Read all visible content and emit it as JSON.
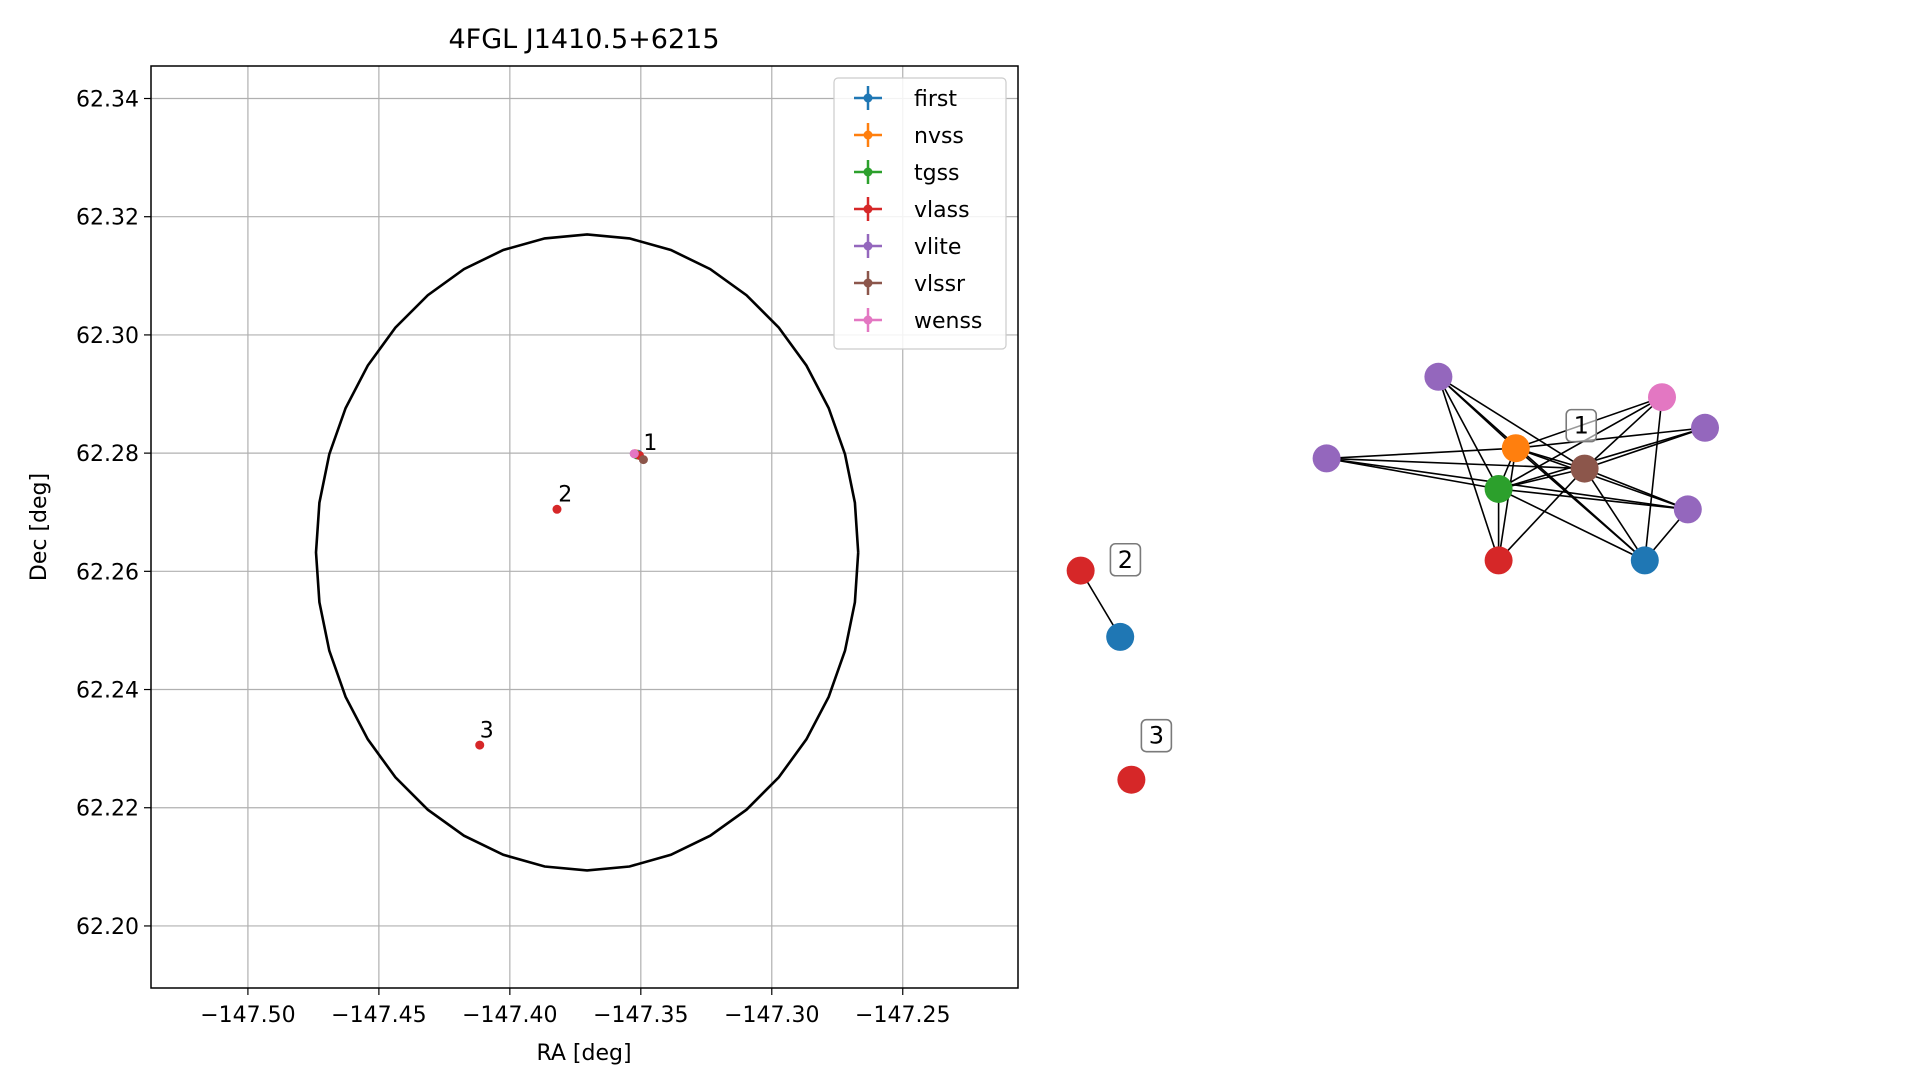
{
  "chart_data": [
    {
      "type": "scatter",
      "title": "4FGL J1410.5+6215",
      "xlabel": "RA [deg]",
      "ylabel": "Dec [deg]",
      "xlim": [
        -147.537,
        -147.206
      ],
      "ylim": [
        62.1895,
        62.3455
      ],
      "xticks": [
        -147.5,
        -147.45,
        -147.4,
        -147.35,
        -147.3,
        -147.25
      ],
      "xtick_labels": [
        "−147.50",
        "−147.45",
        "−147.40",
        "−147.35",
        "−147.30",
        "−147.25"
      ],
      "yticks": [
        62.2,
        62.22,
        62.24,
        62.26,
        62.28,
        62.3,
        62.32,
        62.34
      ],
      "ytick_labels": [
        "62.20",
        "62.22",
        "62.24",
        "62.26",
        "62.28",
        "62.30",
        "62.32",
        "62.34"
      ],
      "grid": true,
      "legend_position": "upper right",
      "ellipse": {
        "center": [
          -147.3705,
          62.2632
        ],
        "half_width": 0.1035,
        "half_height": 0.0538
      },
      "series": [
        {
          "name": "first",
          "color": "#1f77b4",
          "points": [
            [
              -147.351,
              62.2798
            ]
          ]
        },
        {
          "name": "nvss",
          "color": "#ff7f0e",
          "points": [
            [
              -147.352,
              62.2799
            ]
          ]
        },
        {
          "name": "tgss",
          "color": "#2ca02c",
          "points": [
            [
              -147.3515,
              62.2797
            ]
          ]
        },
        {
          "name": "vlass",
          "color": "#d62728",
          "points": [
            [
              -147.3505,
              62.2796
            ],
            [
              -147.382,
              62.2705
            ],
            [
              -147.4115,
              62.2306
            ]
          ]
        },
        {
          "name": "vlite",
          "color": "#9467bd",
          "points": [
            [
              -147.3525,
              62.2799
            ]
          ]
        },
        {
          "name": "vlssr",
          "color": "#8c564b",
          "points": [
            [
              -147.349,
              62.2789
            ]
          ]
        },
        {
          "name": "wenss",
          "color": "#e377c2",
          "points": [
            [
              -147.3525,
              62.2799
            ]
          ]
        }
      ],
      "annotations": [
        {
          "text": "1",
          "x": -147.349,
          "y": 62.2805
        },
        {
          "text": "2",
          "x": -147.3815,
          "y": 62.2718
        },
        {
          "text": "3",
          "x": -147.4115,
          "y": 62.2319
        }
      ]
    },
    {
      "type": "network",
      "groups": [
        {
          "label": "1",
          "nodes": [
            {
              "survey": "vlite",
              "color": "#9467bd",
              "x": 0.44,
              "y": 0.66
            },
            {
              "survey": "wenss",
              "color": "#e377c2",
              "x": 0.7,
              "y": 0.64
            },
            {
              "survey": "vlite",
              "color": "#9467bd",
              "x": 0.75,
              "y": 0.61
            },
            {
              "survey": "nvss",
              "color": "#ff7f0e",
              "x": 0.53,
              "y": 0.59
            },
            {
              "survey": "vlssr",
              "color": "#8c564b",
              "x": 0.61,
              "y": 0.57
            },
            {
              "survey": "vlite",
              "color": "#9467bd",
              "x": 0.31,
              "y": 0.58
            },
            {
              "survey": "tgss",
              "color": "#2ca02c",
              "x": 0.51,
              "y": 0.55
            },
            {
              "survey": "vlite",
              "color": "#9467bd",
              "x": 0.73,
              "y": 0.53
            },
            {
              "survey": "vlass",
              "color": "#d62728",
              "x": 0.51,
              "y": 0.48
            },
            {
              "survey": "first",
              "color": "#1f77b4",
              "x": 0.68,
              "y": 0.48
            }
          ],
          "edges": [
            [
              0,
              3
            ],
            [
              0,
              4
            ],
            [
              0,
              6
            ],
            [
              0,
              8
            ],
            [
              0,
              9
            ],
            [
              1,
              3
            ],
            [
              1,
              4
            ],
            [
              1,
              6
            ],
            [
              1,
              9
            ],
            [
              2,
              3
            ],
            [
              2,
              4
            ],
            [
              2,
              6
            ],
            [
              3,
              5
            ],
            [
              3,
              4
            ],
            [
              3,
              6
            ],
            [
              3,
              7
            ],
            [
              3,
              8
            ],
            [
              3,
              9
            ],
            [
              4,
              5
            ],
            [
              4,
              6
            ],
            [
              4,
              7
            ],
            [
              4,
              8
            ],
            [
              4,
              9
            ],
            [
              5,
              6
            ],
            [
              5,
              7
            ],
            [
              6,
              7
            ],
            [
              6,
              8
            ],
            [
              6,
              9
            ],
            [
              7,
              9
            ]
          ]
        },
        {
          "label": "2",
          "nodes": [
            {
              "survey": "vlass",
              "color": "#d62728",
              "x": 0.024,
              "y": 0.47
            },
            {
              "survey": "first",
              "color": "#1f77b4",
              "x": 0.07,
              "y": 0.405
            }
          ],
          "edges": [
            [
              0,
              1
            ]
          ]
        },
        {
          "label": "3",
          "nodes": [
            {
              "survey": "vlass",
              "color": "#d62728",
              "x": 0.083,
              "y": 0.265
            }
          ],
          "edges": []
        }
      ]
    }
  ]
}
